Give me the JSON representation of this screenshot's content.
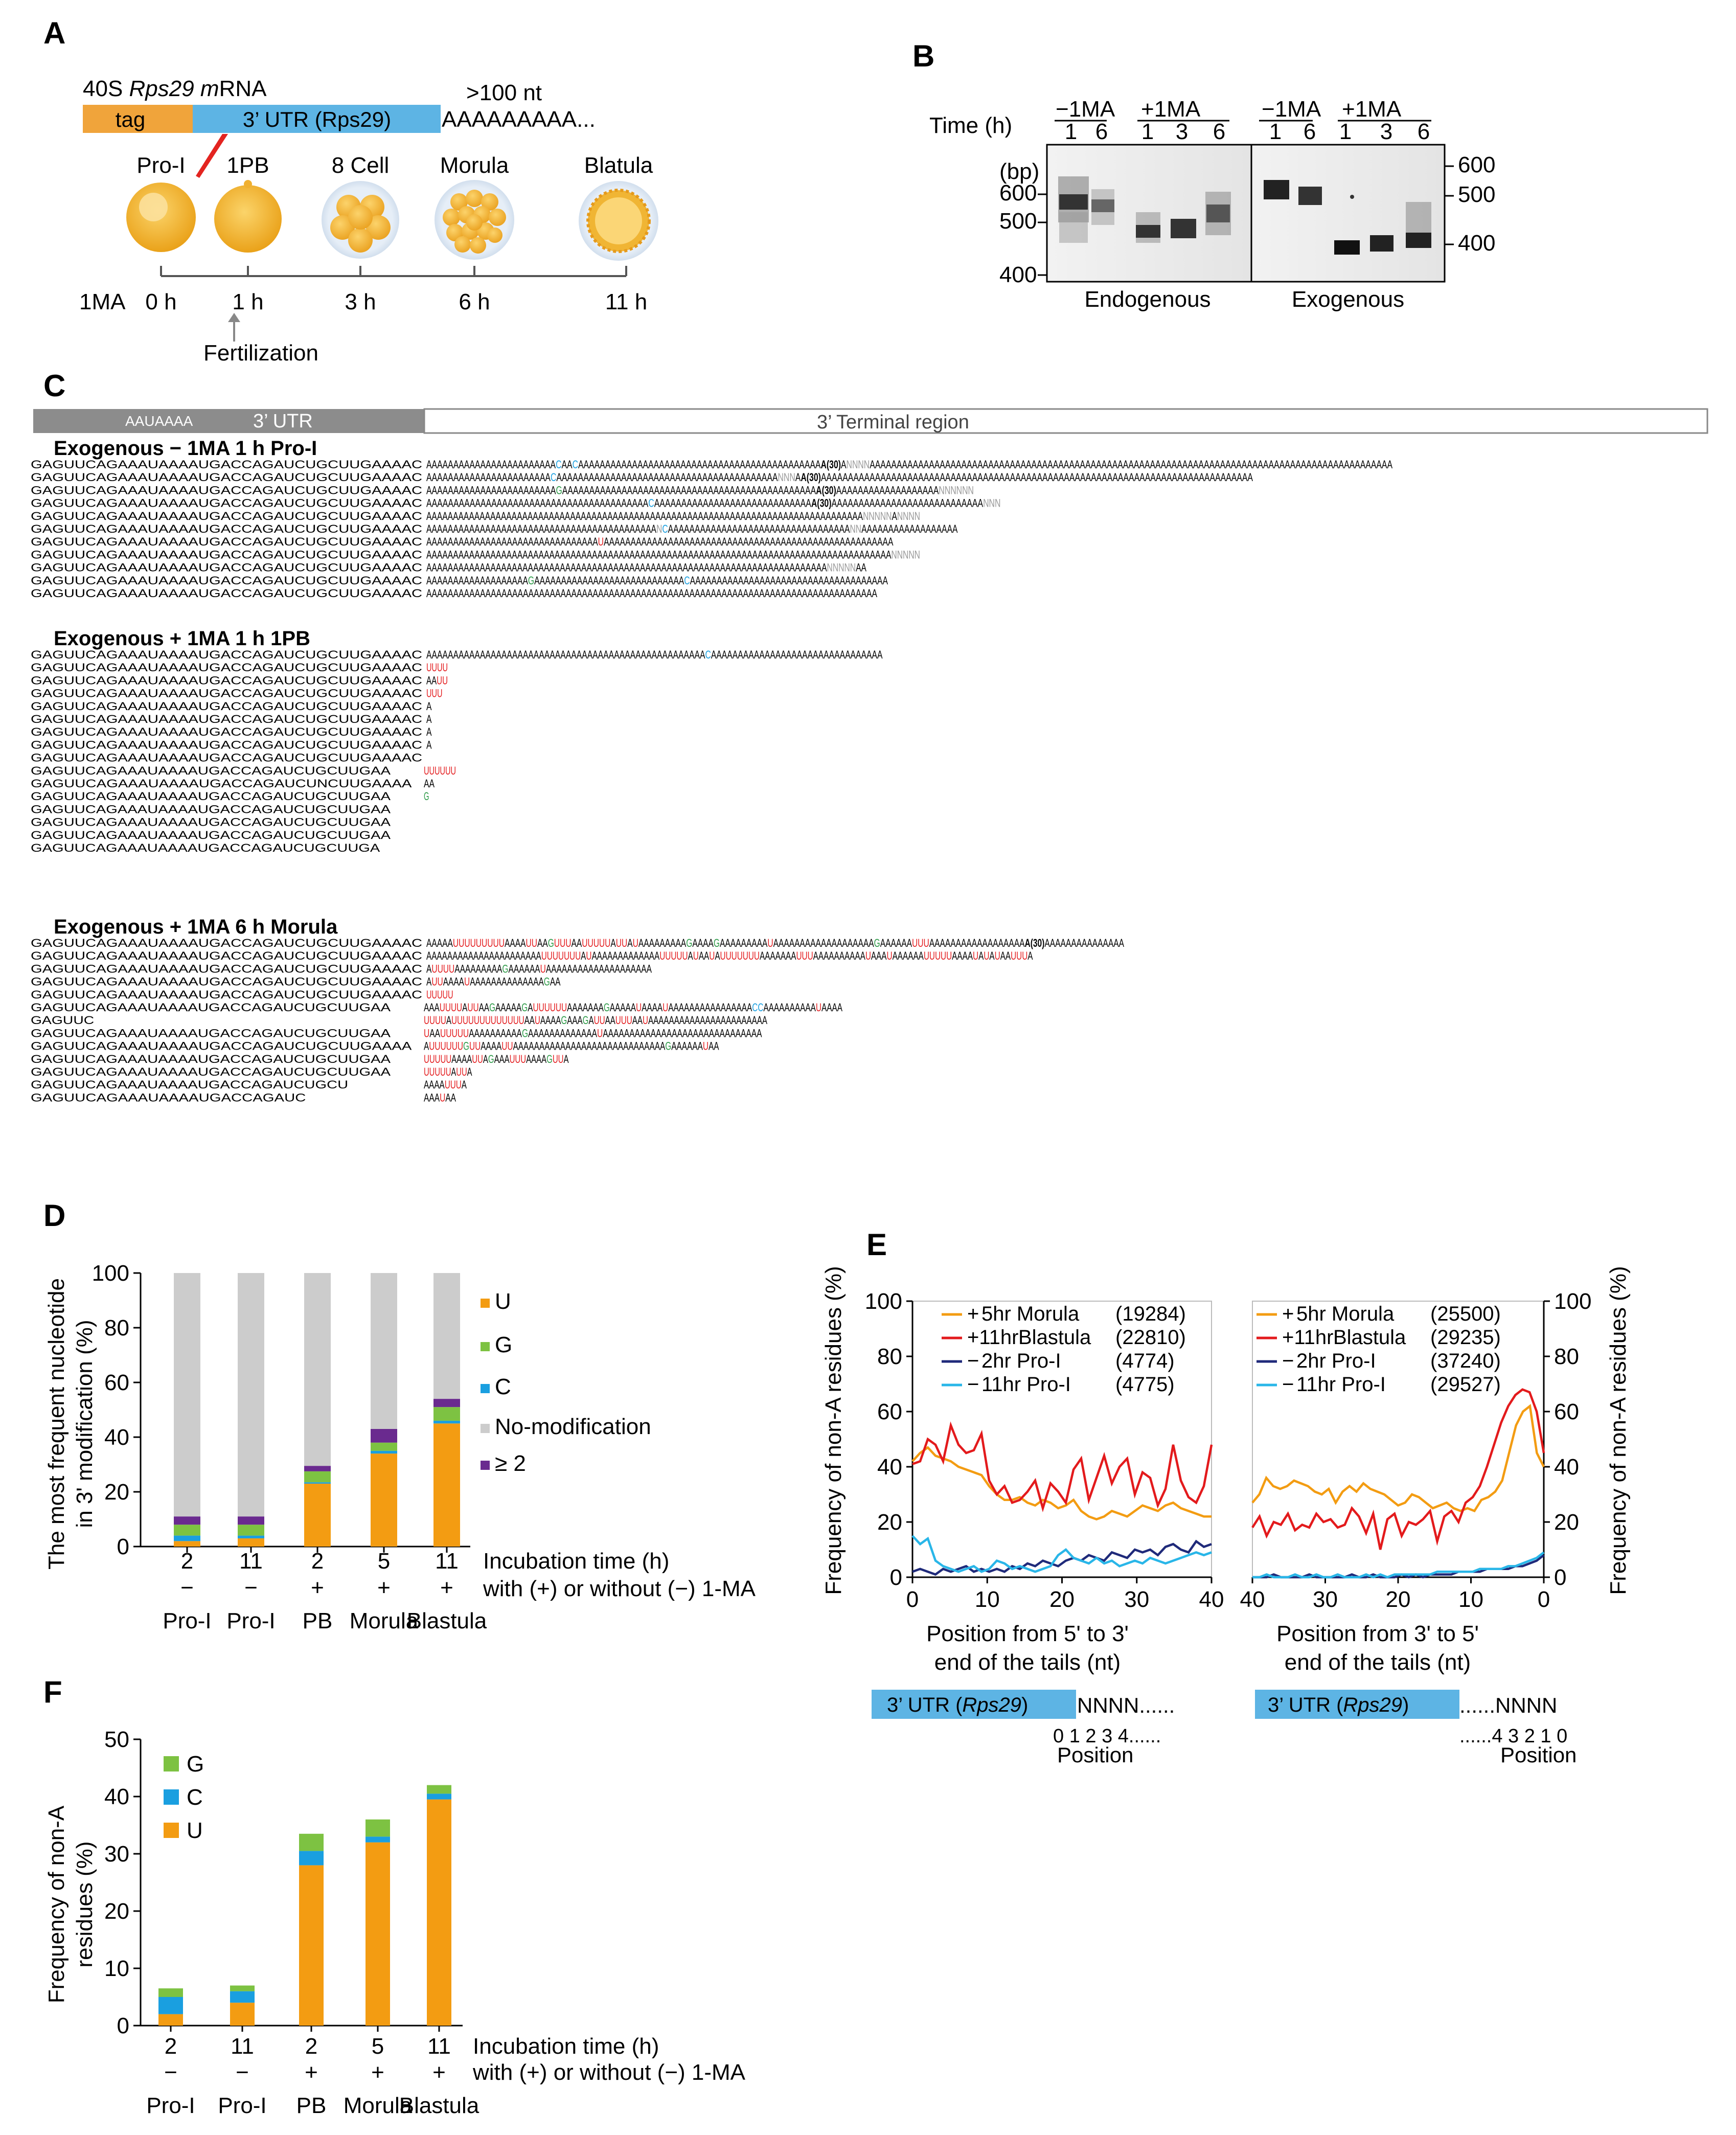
{
  "colors": {
    "orange": "#f39c12",
    "blue": "#5dade2",
    "green": "#7dc242",
    "cyan": "#1a9fe0",
    "purple": "#6a2a8f",
    "gray": "#cccccc",
    "red": "#e31a1c",
    "navy": "#1f2a7a",
    "lightblue": "#29b6e8"
  },
  "panelA": {
    "label": "A",
    "mrna_title_pre": "40S ",
    "mrna_title_gene": "Rps29 m",
    "mrna_title_post": "RNA",
    "tag": "tag",
    "utr": "3’ UTR (Rps29)",
    "tail_len": ">100 nt",
    "polyA": "AAAAAAAAA...",
    "stages": [
      "Pro-I",
      "1PB",
      "8 Cell",
      "Morula",
      "Blatula"
    ],
    "axis_label": "1MA",
    "times": [
      "0 h",
      "1 h",
      "3 h",
      "6 h",
      "11 h"
    ],
    "fert": "Fertilization"
  },
  "panelB": {
    "label": "B",
    "time_label": "Time (h)",
    "bp_label": "(bp)",
    "groups": [
      "−1MA",
      "+1MA",
      "−1MA",
      "+1MA"
    ],
    "lanes": [
      "1",
      "6",
      "1",
      "3",
      "6",
      "1",
      "6",
      "1",
      "3",
      "6"
    ],
    "left_ticks": [
      "600",
      "500",
      "400"
    ],
    "right_ticks": [
      "600",
      "500",
      "400"
    ],
    "captions": [
      "Endogenous",
      "Exogenous"
    ]
  },
  "panelC": {
    "label": "C",
    "utr_header": "3’ UTR",
    "signal": "AAUAAAA",
    "terminal_header": "3’ Terminal region",
    "blocks": [
      {
        "title": "Exogenous     − 1MA 1 h  Pro-I",
        "rows": [
          [
            "GAGUUCAGAAAUAAAAUGACCAGAUCUGCUUGAAAAC",
            "AAAAAAAAAAAAAAAAAAAAAAAACAACAAAAAAAAAAAAAAAAAAAAAAAAAAAAAAAAAAAAAAAAAAAAAA(30)ANNNNAAAAAAAAAAAAAAAAAAAAAAAAAAAAAAAAAAAAAAAAAAAAAAAAAAAAAAAAAAAAAAAAAAAAAAAAAAAAAAAAAAAAAAAAAAAAAAAAA"
          ],
          [
            "GAGUUCAGAAAUAAAAUGACCAGAUCUGCUUGAAAAC",
            "AAAAAAAAAAAAAAAAAAAAAAACAAAAAAAAAAAAAAAAAAAAAAAAAAAAAAAAAAAAAAAAANNNAA(30)AAAAAAAAAAAAAAAAAAAAAAAAAAAAAAAAAAAAAAAAAAAAAAAAAAAAAAAAAAAAAAAAAAAAAAAAAAAAAAAA"
          ],
          [
            "GAGUUCAGAAAUAAAAUGACCAGAUCUGCUUGAAAAC",
            "AAAAAAAAAAAAAAAAAAAAAAAAGAAAAAAAAAAAAAAAAAAAAAAAAAAAAAAAAAAAAAAAAAAAAAAAA(30)AAAAAAAAAAAAAAAAAAANNNNNN"
          ],
          [
            "GAGUUCAGAAAUAAAAUGACCAGAUCUGCUUGAAAAC",
            "AAAAAAAAAAAAAAAAAAAAAAAAAAAAAAAAAAAAAAAAACAAAAAAAAAAAAAAAAAAAAAAAAAAAAAA(30)AAAAAAAAAAAAAAAAAAAAAAAAAAAANNN"
          ],
          [
            "GAGUUCAGAAAUAAAAUGACCAGAUCUGCUUGAAAAC",
            "AAAAAAAAAAAAAAAAAAAAAAAAAAAAAAAAAAAAAAAAAAAAAAAAAAAAAAAAAAAAAAAAAAAAAAAAAAAAAAAAAANNNNNANNNN"
          ],
          [
            "GAGUUCAGAAAUAAAAUGACCAGAUCUGCUUGAAAAC",
            "AAAAAAAAAAAAAAAAAAAAAAAAAAAAAAAAAAAAAAAAAAANCAAAAAAAAAAAAAAAAAAAAAAAAAAAAAAAAAANNAAAAAAAAAAAAAAAAAA"
          ],
          [
            "GAGUUCAGAAAUAAAAUGACCAGAUCUGCUUGAAAAC",
            "AAAAAAAAAAAAAAAAAAAAAAAAAAAAAAAAUAAAAAAAAAAAAAAAAAAAAAAAAAAAAAAAAAAAAAAAAAAAAAAAAAAAAAA"
          ],
          [
            "GAGUUCAGAAAUAAAAUGACCAGAUCUGCUUGAAAAC",
            "AAAAAAAAAAAAAAAAAAAAAAAAAAAAAAAAAAAAAAAAAAAAAAAAAAAAAAAAAAAAAAAAAAAAAAAAAAAAAAAAAAAAAAANNNNN"
          ],
          [
            "GAGUUCAGAAAUAAAAUGACCAGAUCUGCUUGAAAAC",
            "AAAAAAAAAAAAAAAAAAAAAAAAAAAAAAAAAAAAAAAAAAAAAAAAAAAAAAAAAAAAAAAAAAAAAAAAAAANNNNNAA"
          ],
          [
            "GAGUUCAGAAAUAAAAUGACCAGAUCUGCUUGAAAAC",
            "AAAAAAAAAAAAAAAAAAAGAAAAAAAAAAAAAAAAAAAAAAAAAAAACAAAAAAAAAAAAAAAAAAAAAAAAAAAAAAAAAAAAA"
          ],
          [
            "GAGUUCAGAAAUAAAAUGACCAGAUCUGCUUGAAAAC",
            "AAAAAAAAAAAAAAAAAAAAAAAAAAAAAAAAAAAAAAAAAAAAAAAAAAAAAAAAAAAAAAAAAAAAAAAAAAAAAAAAAAAA"
          ]
        ]
      },
      {
        "title": "Exogenous     + 1MA 1 h 1PB",
        "rows": [
          [
            "GAGUUCAGAAAUAAAAUGACCAGAUCUGCUUGAAAAC",
            "AAAAAAAAAAAAAAAAAAAAAAAAAAAAAAAAAAAAAAAAAAAAAAAAAAAACAAAAAAAAAAAAAAAAAAAAAAAAAAAAAAAA"
          ],
          [
            "GAGUUCAGAAAUAAAAUGACCAGAUCUGCUUGAAAAC",
            "UUUU"
          ],
          [
            "GAGUUCAGAAAUAAAAUGACCAGAUCUGCUUGAAAAC",
            "AAUU"
          ],
          [
            "GAGUUCAGAAAUAAAAUGACCAGAUCUGCUUGAAAAC",
            "UUU"
          ],
          [
            "GAGUUCAGAAAUAAAAUGACCAGAUCUGCUUGAAAAC",
            "A"
          ],
          [
            "GAGUUCAGAAAUAAAAUGACCAGAUCUGCUUGAAAAC",
            "A"
          ],
          [
            "GAGUUCAGAAAUAAAAUGACCAGAUCUGCUUGAAAAC",
            "A"
          ],
          [
            "GAGUUCAGAAAUAAAAUGACCAGAUCUGCUUGAAAAC",
            "A"
          ],
          [
            "GAGUUCAGAAAUAAAAUGACCAGAUCUGCUUGAAAAC",
            ""
          ],
          [
            "GAGUUCAGAAAUAAAAUGACCAGAUCUGCUUGAA",
            "UUUUUU"
          ],
          [
            "GAGUUCAGAAAUAAAAUGACCAGAUCUNCUUGAAAA",
            "AA"
          ],
          [
            "GAGUUCAGAAAUAAAAUGACCAGAUCUGCUUGAA",
            "G"
          ],
          [
            "GAGUUCAGAAAUAAAAUGACCAGAUCUGCUUGAA",
            ""
          ],
          [
            "GAGUUCAGAAAUAAAAUGACCAGAUCUGCUUGAA",
            ""
          ],
          [
            "GAGUUCAGAAAUAAAAUGACCAGAUCUGCUUGAA",
            ""
          ],
          [
            "GAGUUCAGAAAUAAAAUGACCAGAUCUGCUUGA",
            ""
          ]
        ]
      },
      {
        "title": "Exogenous     + 1MA  6 h Morula",
        "rows": [
          [
            "GAGUUCAGAAAUAAAAUGACCAGAUCUGCUUGAAAAC",
            "AAAAAUUUUUUUUUAAAAUUAAGUUUAAUUUUUAUUAUAAAAAAAAAGAAAAGAAAAAAAAAUAAAAAAAAAAAAAAAAAAAGAAAAAAUUUAAAAAAAAAAAAAAAAAAA(30)AAAAAAAAAAAAAAA"
          ],
          [
            "GAGUUCAGAAAUAAAAUGACCAGAUCUGCUUGAAAAC",
            "AAAAAAAAAAAAAAAAAAAAAAUUUUUUUAUAAAAAAAAAAAAAUUUUUAUAAUAUUUUUUUAAAAAAAUUUAAAAAAAAAAUAAAUAAAAAAUUUUUAAAAUAUAUAAUUUA"
          ],
          [
            "GAGUUCAGAAAUAAAAUGACCAGAUCUGCUUGAAAAC",
            "AUUUUAAAAAAAAAGAAAAAAUAAAAAAAAAAAAAAAAAAAA"
          ],
          [
            "GAGUUCAGAAAUAAAAUGACCAGAUCUGCUUGAAAAC",
            "AUUAAAAUAAAAAAAAAAAAAAGAA"
          ],
          [
            "GAGUUCAGAAAUAAAAUGACCAGAUCUGCUUGAAAAC",
            "UUUUU"
          ],
          [
            "GAGUUCAGAAAUAAAAUGACCAGAUCUGCUUGAA",
            "AAAUUUUAUUAAGAAAAAGAUUUUUUAAAAAAAGAAAAAUAAAAUAAAAAAAAAAAAAAAACCAAAAAAAAAAUAAAA"
          ],
          [
            "GAGUUC",
            "UUUUAUUUUUUUUUUUUUAAUAAAAGAAAGAUUAAUUUAAUAAAAAAAAAAAAAAAAAAAAAAA"
          ],
          [
            "GAGUUCAGAAAUAAAAUGACCAGAUCUGCUUGAA",
            "UAAUUUUUAAAAAAAAAAGAAAAAAAAAAAAAUAAAAAAAAAAAAAAAAAAAAAAAAAAAAAA"
          ],
          [
            "GAGUUCAGAAAUAAAAUGACCAGAUCUGCUUGAAAA",
            "AUUUUUUGUUAAAAUUAAAAAAAAAAAAAAAAAAAAAAAAAAAAAGAAAAAAUAA"
          ],
          [
            "GAGUUCAGAAAUAAAAUGACCAGAUCUGCUUGAA",
            "UUUUUAAAAUUAGAAAUUUAAAAGUUA"
          ],
          [
            "GAGUUCAGAAAUAAAAUGACCAGAUCUGCUUGAA",
            "UUUUUAUUA"
          ],
          [
            "GAGUUCAGAAAUAAAAUGACCAGAUCUGCU",
            "AAAAUUUA"
          ],
          [
            "GAGUUCAGAAAUAAAAUGACCAGAUC",
            "AAAUAA"
          ]
        ]
      }
    ]
  },
  "panelD": {
    "label": "D",
    "ylabel1": "The most frequent nucleotide",
    "ylabel2": "in 3' modification  (%)",
    "yticks": [
      "0",
      "20",
      "40",
      "60",
      "80",
      "100"
    ],
    "legend": [
      "U",
      "G",
      "C",
      "No-modification",
      "≥ 2"
    ],
    "incubation": "Incubation time (h)",
    "with_label": "with (+) or without (−) 1-MA"
  },
  "panelE": {
    "label": "E",
    "ylabel_left": "Frequency of non-A residues (%)",
    "ylabel_right": "Frequency of non-A residues (%)",
    "yticks": [
      "0",
      "20",
      "40",
      "60",
      "80",
      "100"
    ],
    "left_xlabel1": "Position from 5' to 3'",
    "left_xlabel2": "end of the tails (nt)",
    "right_xlabel1": "Position from 3' to 5'",
    "right_xlabel2": "end of the tails (nt)",
    "left_legend": [
      [
        "+",
        "5hr Morula",
        "(19284)"
      ],
      [
        "+11hr",
        "Blastula",
        "(22810)"
      ],
      [
        "−",
        "2hr Pro-I",
        "(4774)"
      ],
      [
        "−",
        "11hr Pro-I",
        "(4775)"
      ]
    ],
    "right_legend": [
      [
        "+",
        "5hr Morula",
        "(25500)"
      ],
      [
        "+11hr",
        "Blastula",
        "(29235)"
      ],
      [
        "−",
        "2hr Pro-I",
        "(37240)"
      ],
      [
        "−",
        "11hr Pro-I",
        "(29527)"
      ]
    ],
    "left_xticks": [
      "0",
      "10",
      "20",
      "30",
      "40"
    ],
    "right_xticks": [
      "40",
      "30",
      "20",
      "10",
      "0"
    ],
    "utr_pre": "3’ UTR (",
    "utr_gene": "Rps29",
    "utr_post": ")",
    "left_tail": "NNNN......",
    "left_positions": "0 1 2 3 4......",
    "right_tail": "......NNNN",
    "right_positions": "......4 3 2 1 0",
    "position_word": "Position"
  },
  "panelF": {
    "label": "F",
    "ylabel1": "Frequency of non-A",
    "ylabel2": "residues (%)",
    "yticks": [
      "0",
      "10",
      "20",
      "30",
      "40",
      "50"
    ],
    "legend": [
      "G",
      "C",
      "U"
    ],
    "incubation": "Incubation time (h)",
    "with_label": "with (+) or without (−) 1-MA"
  },
  "chart_data": [
    {
      "type": "bar",
      "id": "D",
      "stacked": true,
      "ylim": [
        0,
        100
      ],
      "ylabel": "The most frequent nucleotide in 3' modification (%)",
      "categories": [
        "2",
        "11",
        "2",
        "5",
        "11"
      ],
      "signs": [
        "−",
        "−",
        "+",
        "+",
        "+"
      ],
      "stages": [
        "Pro-I",
        "Pro-I",
        "PB",
        "Morula",
        "Blastula"
      ],
      "series": [
        {
          "name": "U",
          "values": [
            2,
            3,
            23,
            34,
            45
          ]
        },
        {
          "name": "C",
          "values": [
            2,
            1,
            0.5,
            1,
            1
          ]
        },
        {
          "name": "G",
          "values": [
            4,
            4,
            4,
            3,
            5
          ]
        },
        {
          "name": "≥ 2",
          "values": [
            3,
            3,
            2,
            5,
            3
          ]
        },
        {
          "name": "No-modification",
          "values": [
            89,
            89,
            70.5,
            57,
            46
          ]
        }
      ]
    },
    {
      "type": "line",
      "id": "E-left",
      "xlim": [
        0,
        40
      ],
      "ylim": [
        0,
        100
      ],
      "series": [
        {
          "name": "+ 5hr Morula",
          "values": [
            42,
            45,
            47,
            44,
            43,
            42,
            40,
            39,
            38,
            37,
            33,
            30,
            28,
            28,
            29,
            27,
            26,
            28,
            27,
            25,
            26,
            28,
            24,
            22,
            21,
            22,
            24,
            23,
            22,
            24,
            26,
            25,
            24,
            26,
            27,
            25,
            24,
            23,
            22,
            22
          ]
        },
        {
          "name": "+11hr Blastula",
          "values": [
            41,
            42,
            50,
            48,
            42,
            55,
            48,
            45,
            46,
            52,
            35,
            30,
            33,
            27,
            28,
            31,
            35,
            25,
            34,
            31,
            27,
            39,
            43,
            28,
            36,
            44,
            34,
            40,
            43,
            30,
            38,
            36,
            26,
            32,
            48,
            35,
            29,
            27,
            33,
            48
          ]
        },
        {
          "name": "− 2hr Pro-I",
          "values": [
            2,
            3,
            2,
            1,
            3,
            2,
            3,
            4,
            2,
            3,
            2,
            3,
            2,
            4,
            3,
            5,
            4,
            6,
            5,
            4,
            6,
            7,
            6,
            8,
            7,
            6,
            9,
            8,
            7,
            10,
            9,
            10,
            8,
            11,
            12,
            10,
            9,
            13,
            11,
            12
          ]
        },
        {
          "name": "− 11hr Pro-I",
          "values": [
            15,
            12,
            14,
            6,
            4,
            3,
            2,
            3,
            4,
            2,
            3,
            6,
            5,
            3,
            4,
            3,
            2,
            3,
            4,
            8,
            10,
            7,
            6,
            5,
            7,
            5,
            6,
            4,
            5,
            6,
            5,
            7,
            6,
            5,
            6,
            7,
            8,
            9,
            8,
            9
          ]
        }
      ]
    },
    {
      "type": "line",
      "id": "E-right",
      "xlim": [
        40,
        0
      ],
      "ylim": [
        0,
        100
      ],
      "series": [
        {
          "name": "+ 5hr Morula",
          "values": [
            27,
            30,
            36,
            33,
            32,
            33,
            35,
            34,
            33,
            31,
            30,
            32,
            27,
            31,
            33,
            31,
            34,
            32,
            31,
            30,
            28,
            26,
            27,
            30,
            29,
            27,
            25,
            26,
            27,
            25,
            24,
            25,
            24,
            28,
            29,
            31,
            35,
            45,
            55,
            60,
            62,
            45,
            40
          ]
        },
        {
          "name": "+11hr Blastula",
          "values": [
            18,
            22,
            15,
            20,
            19,
            23,
            17,
            19,
            18,
            23,
            20,
            21,
            18,
            19,
            25,
            22,
            16,
            23,
            10,
            21,
            23,
            15,
            20,
            19,
            21,
            24,
            13,
            22,
            24,
            20,
            27,
            29,
            33,
            40,
            48,
            56,
            62,
            66,
            68,
            67,
            60,
            45
          ]
        },
        {
          "name": "− 2hr Pro-I",
          "values": [
            0,
            0,
            0,
            1,
            0,
            0,
            0,
            0,
            1,
            0,
            0,
            0,
            0,
            0,
            1,
            0,
            0,
            1,
            0,
            0,
            0,
            1,
            0,
            1,
            0,
            1,
            1,
            1,
            1,
            2,
            2,
            2,
            2,
            3,
            3,
            3,
            3,
            4,
            4,
            5,
            6,
            8
          ]
        },
        {
          "name": "− 11hr Pro-I",
          "values": [
            0,
            0,
            1,
            0,
            0,
            0,
            1,
            0,
            0,
            1,
            0,
            0,
            1,
            0,
            0,
            0,
            1,
            0,
            1,
            0,
            1,
            1,
            1,
            1,
            1,
            1,
            2,
            2,
            2,
            2,
            2,
            2,
            3,
            3,
            3,
            3,
            4,
            4,
            5,
            6,
            7,
            9
          ]
        }
      ]
    },
    {
      "type": "bar",
      "id": "F",
      "stacked": true,
      "ylim": [
        0,
        50
      ],
      "ylabel": "Frequency of non-A residues (%)",
      "categories": [
        "2",
        "11",
        "2",
        "5",
        "11"
      ],
      "signs": [
        "−",
        "−",
        "+",
        "+",
        "+"
      ],
      "stages": [
        "Pro-I",
        "Pro-I",
        "PB",
        "Morula",
        "Blastula"
      ],
      "series": [
        {
          "name": "U",
          "values": [
            2,
            4,
            28,
            32,
            39.5
          ]
        },
        {
          "name": "C",
          "values": [
            3,
            2,
            2.5,
            1,
            1
          ]
        },
        {
          "name": "G",
          "values": [
            1.5,
            1,
            3,
            3,
            1.5
          ]
        }
      ]
    }
  ]
}
